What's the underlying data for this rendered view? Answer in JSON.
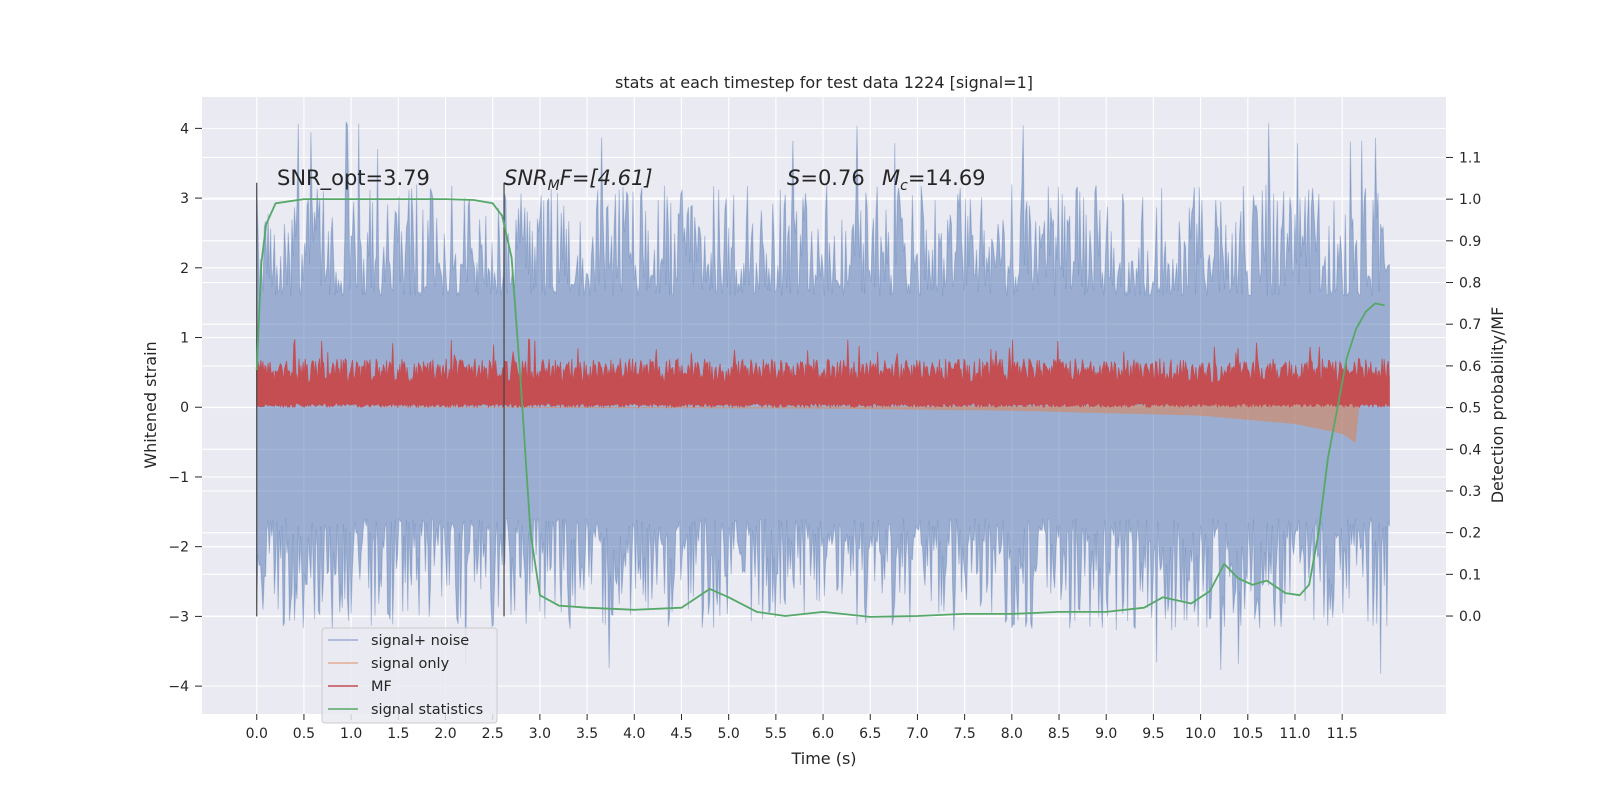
{
  "chart_data": {
    "type": "line",
    "title": "stats at each timestep for test data 1224 [signal=1]",
    "xlabel": "Time (s)",
    "ylabel_left": "Whitened strain",
    "ylabel_right": "Detection probability/MF",
    "xlim": [
      -0.58,
      12.6
    ],
    "ylim_left": [
      -4.4,
      4.45
    ],
    "ylim_right": [
      -0.235,
      1.245
    ],
    "x_ticks": [
      0.0,
      0.5,
      1.0,
      1.5,
      2.0,
      2.5,
      3.0,
      3.5,
      4.0,
      4.5,
      5.0,
      5.5,
      6.0,
      6.5,
      7.0,
      7.5,
      8.0,
      8.5,
      9.0,
      9.5,
      10.0,
      10.5,
      11.0,
      11.5
    ],
    "x_tick_labels": [
      "0.0",
      "0.5",
      "1.0",
      "1.5",
      "2.0",
      "2.5",
      "3.0",
      "3.5",
      "4.0",
      "4.5",
      "5.0",
      "5.5",
      "6.0",
      "6.5",
      "7.0",
      "7.5",
      "8.0",
      "8.5",
      "9.0",
      "9.5",
      "10.0",
      "10.5",
      "11.0",
      "11.5"
    ],
    "y_ticks_left": [
      -4,
      -3,
      -2,
      -1,
      0,
      1,
      2,
      3,
      4
    ],
    "y_tick_labels_left": [
      "−4",
      "−3",
      "−2",
      "−1",
      "0",
      "1",
      "2",
      "3",
      "4"
    ],
    "y_ticks_right": [
      0.0,
      0.1,
      0.2,
      0.3,
      0.4,
      0.5,
      0.6,
      0.7,
      0.8,
      0.9,
      1.0,
      1.1
    ],
    "y_tick_labels_right": [
      "0.0",
      "0.1",
      "0.2",
      "0.3",
      "0.4",
      "0.5",
      "0.6",
      "0.7",
      "0.8",
      "0.9",
      "1.0",
      "1.1"
    ],
    "grid": true,
    "legend_position": "lower-left",
    "annotations": {
      "snr_opt": "SNR_opt=3.79",
      "snr_mf_main": "SNR",
      "snr_mf_sub": "M",
      "snr_mf_rest": "F=[4.61]",
      "s_main": "S",
      "s_rest": "=0.76",
      "mc_main": "M",
      "mc_sub": "c",
      "mc_rest": "=14.69"
    },
    "vlines": [
      0.0,
      2.62
    ],
    "vline_range": [
      -3.0,
      3.22
    ],
    "series": [
      {
        "name": "signal+ noise",
        "axis": "left",
        "color": "#4c72b0",
        "kind": "noise",
        "x_range": [
          0.0,
          12.0
        ],
        "typical_range": [
          -2.0,
          2.0
        ],
        "min": -3.9,
        "max": 4.1
      },
      {
        "name": "signal only",
        "axis": "left",
        "color": "#dd8452",
        "kind": "chirp",
        "x_range": [
          0.0,
          11.68
        ],
        "points": [
          [
            0.0,
            0.0
          ],
          [
            6.0,
            0.02
          ],
          [
            8.0,
            0.05
          ],
          [
            10.0,
            0.12
          ],
          [
            11.0,
            0.24
          ],
          [
            11.5,
            0.38
          ],
          [
            11.65,
            0.52
          ]
        ]
      },
      {
        "name": "MF",
        "axis": "left",
        "color": "#c44e52",
        "kind": "noise",
        "x_range": [
          0.0,
          12.0
        ],
        "typical_range": [
          0.0,
          0.7
        ],
        "min": 0.0,
        "max": 1.0
      },
      {
        "name": "signal statistics",
        "axis": "right",
        "color": "#55a868",
        "kind": "line",
        "points": [
          [
            0.0,
            0.59
          ],
          [
            0.05,
            0.85
          ],
          [
            0.1,
            0.94
          ],
          [
            0.2,
            0.99
          ],
          [
            0.5,
            1.0
          ],
          [
            1.0,
            1.0
          ],
          [
            2.0,
            1.0
          ],
          [
            2.3,
            0.998
          ],
          [
            2.5,
            0.99
          ],
          [
            2.6,
            0.96
          ],
          [
            2.7,
            0.86
          ],
          [
            2.8,
            0.55
          ],
          [
            2.9,
            0.2
          ],
          [
            3.0,
            0.05
          ],
          [
            3.2,
            0.025
          ],
          [
            3.5,
            0.02
          ],
          [
            4.0,
            0.015
          ],
          [
            4.5,
            0.02
          ],
          [
            4.8,
            0.065
          ],
          [
            5.0,
            0.045
          ],
          [
            5.3,
            0.01
          ],
          [
            5.6,
            0.0
          ],
          [
            6.0,
            0.01
          ],
          [
            6.5,
            -0.002
          ],
          [
            7.0,
            0.0
          ],
          [
            7.5,
            0.005
          ],
          [
            8.0,
            0.005
          ],
          [
            8.5,
            0.01
          ],
          [
            9.0,
            0.01
          ],
          [
            9.4,
            0.02
          ],
          [
            9.6,
            0.045
          ],
          [
            9.9,
            0.03
          ],
          [
            10.1,
            0.06
          ],
          [
            10.25,
            0.125
          ],
          [
            10.4,
            0.09
          ],
          [
            10.55,
            0.075
          ],
          [
            10.7,
            0.085
          ],
          [
            10.9,
            0.055
          ],
          [
            11.05,
            0.05
          ],
          [
            11.15,
            0.075
          ],
          [
            11.25,
            0.2
          ],
          [
            11.35,
            0.38
          ],
          [
            11.45,
            0.5
          ],
          [
            11.55,
            0.62
          ],
          [
            11.65,
            0.69
          ],
          [
            11.75,
            0.73
          ],
          [
            11.85,
            0.75
          ],
          [
            11.95,
            0.745
          ]
        ]
      }
    ]
  }
}
